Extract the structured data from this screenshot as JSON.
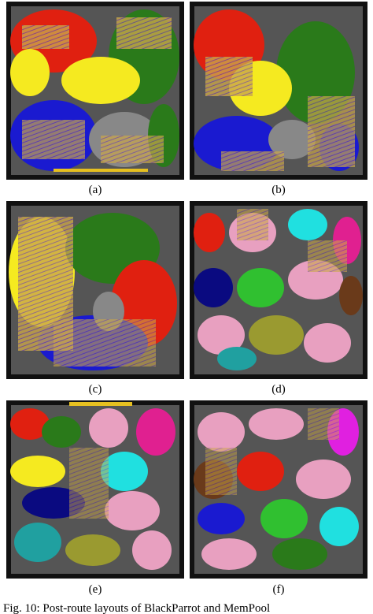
{
  "panels": [
    {
      "label": "(a)"
    },
    {
      "label": "(b)"
    },
    {
      "label": "(c)"
    },
    {
      "label": "(d)"
    },
    {
      "label": "(e)"
    },
    {
      "label": "(f)"
    }
  ],
  "caption": "Fig. 10: Post-route layouts of BlackParrot and MemPool"
}
